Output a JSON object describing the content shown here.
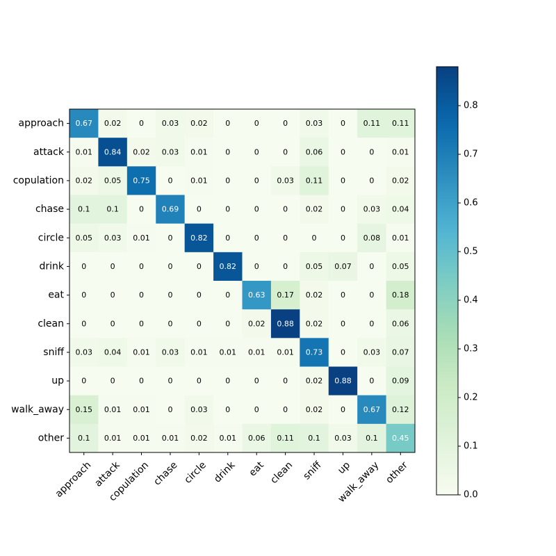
{
  "chart_data": {
    "type": "heatmap",
    "title": "",
    "xlabel": "",
    "ylabel": "",
    "rows": [
      "approach",
      "attack",
      "copulation",
      "chase",
      "circle",
      "drink",
      "eat",
      "clean",
      "sniff",
      "up",
      "walk_away",
      "other"
    ],
    "columns": [
      "approach",
      "attack",
      "copulation",
      "chase",
      "circle",
      "drink",
      "eat",
      "clean",
      "sniff",
      "up",
      "walk_away",
      "other"
    ],
    "values": [
      [
        0.67,
        0.02,
        0.0,
        0.03,
        0.02,
        0.0,
        0.0,
        0.0,
        0.03,
        0.0,
        0.11,
        0.11
      ],
      [
        0.01,
        0.84,
        0.02,
        0.03,
        0.01,
        0.0,
        0.0,
        0.0,
        0.06,
        0.0,
        0.0,
        0.01
      ],
      [
        0.02,
        0.05,
        0.75,
        0.0,
        0.01,
        0.0,
        0.0,
        0.03,
        0.11,
        0.0,
        0.0,
        0.02
      ],
      [
        0.1,
        0.1,
        0.0,
        0.69,
        0.0,
        0.0,
        0.0,
        0.0,
        0.02,
        0.0,
        0.03,
        0.04
      ],
      [
        0.05,
        0.03,
        0.01,
        0.0,
        0.82,
        0.0,
        0.0,
        0.0,
        0.0,
        0.0,
        0.08,
        0.01
      ],
      [
        0.0,
        0.0,
        0.0,
        0.0,
        0.0,
        0.82,
        0.0,
        0.0,
        0.05,
        0.07,
        0.0,
        0.05
      ],
      [
        0.0,
        0.0,
        0.0,
        0.0,
        0.0,
        0.0,
        0.63,
        0.17,
        0.02,
        0.0,
        0.0,
        0.18
      ],
      [
        0.0,
        0.0,
        0.0,
        0.0,
        0.0,
        0.0,
        0.02,
        0.88,
        0.02,
        0.0,
        0.0,
        0.06
      ],
      [
        0.03,
        0.04,
        0.01,
        0.03,
        0.01,
        0.01,
        0.01,
        0.01,
        0.73,
        0.0,
        0.03,
        0.07
      ],
      [
        0.0,
        0.0,
        0.0,
        0.0,
        0.0,
        0.0,
        0.0,
        0.0,
        0.02,
        0.88,
        0.0,
        0.09
      ],
      [
        0.15,
        0.01,
        0.01,
        0.0,
        0.03,
        0.0,
        0.0,
        0.0,
        0.02,
        0.0,
        0.67,
        0.12
      ],
      [
        0.1,
        0.01,
        0.01,
        0.01,
        0.02,
        0.01,
        0.06,
        0.11,
        0.1,
        0.03,
        0.1,
        0.45
      ]
    ],
    "colormap": "GnBu",
    "color_range": [
      0.0,
      0.88
    ],
    "colorbar_ticks": [
      "0.0",
      "0.1",
      "0.2",
      "0.3",
      "0.4",
      "0.5",
      "0.6",
      "0.7",
      "0.8"
    ],
    "colorbar_placement": "right",
    "grid": false
  }
}
